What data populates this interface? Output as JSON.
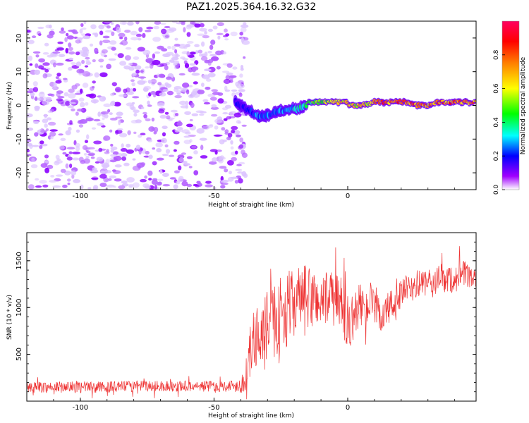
{
  "title": "PAZ1.2025.364.16.32.G32",
  "chart_data": [
    {
      "type": "heatmap",
      "title": "PAZ1.2025.364.16.32.G32",
      "xlabel": "Height of straight line (km)",
      "ylabel": "Frequency (Hz)",
      "xlim": [
        -120,
        48
      ],
      "ylim": [
        -25,
        25
      ],
      "x_ticks": [
        -100,
        -50,
        0
      ],
      "y_ticks": [
        -20,
        -10,
        0,
        10,
        20
      ],
      "colorbar": {
        "label": "Normalized spectral amplitude",
        "range": [
          0.0,
          1.0
        ],
        "ticks": [
          0.0,
          0.2,
          0.4,
          0.6,
          0.8
        ],
        "tick_labels": [
          "0.0",
          "0.2",
          "0.4",
          "0.6",
          "0.8"
        ],
        "colors": [
          "#ffffff",
          "#a000ff",
          "#0000ff",
          "#00ffff",
          "#00ff00",
          "#ffff00",
          "#ff8000",
          "#ff0000",
          "#ff0060"
        ]
      },
      "noise_region": {
        "x_range": [
          -120,
          -40
        ],
        "freq_range": [
          -25,
          25
        ],
        "amplitude_range": [
          0.0,
          0.15
        ]
      },
      "signal_track": {
        "x": [
          -42,
          -38,
          -34,
          -30,
          -26,
          -22,
          -18,
          -14,
          -10,
          -6,
          -2,
          2,
          6,
          10,
          14,
          18,
          22,
          26,
          30,
          34,
          38,
          42,
          46
        ],
        "freq": [
          1,
          -1,
          -3,
          -3,
          -2,
          -1,
          -1,
          1,
          1,
          1,
          1,
          0,
          0,
          1,
          1,
          1,
          1,
          0,
          0,
          1,
          1,
          1,
          1
        ],
        "amplitude": [
          0.2,
          0.2,
          0.3,
          0.3,
          0.3,
          0.3,
          0.4,
          0.5,
          0.6,
          0.6,
          0.7,
          0.7,
          0.7,
          0.8,
          0.9,
          0.85,
          0.9,
          0.85,
          0.8,
          0.85,
          0.85,
          0.85,
          0.8
        ]
      }
    },
    {
      "type": "line",
      "xlabel": "Height of straight line (km)",
      "ylabel": "SNR (10 * v/v)",
      "xlim": [
        -120,
        48
      ],
      "ylim": [
        0,
        1800
      ],
      "x_ticks": [
        -100,
        -50,
        0
      ],
      "y_ticks": [
        500,
        1000,
        1500
      ],
      "series": [
        {
          "name": "SNR",
          "color": "#ee3333",
          "x": [
            -120,
            -110,
            -100,
            -90,
            -80,
            -70,
            -60,
            -50,
            -45,
            -40,
            -38,
            -36,
            -34,
            -32,
            -30,
            -28,
            -26,
            -24,
            -22,
            -20,
            -18,
            -16,
            -14,
            -12,
            -10,
            -8,
            -6,
            -4,
            -2,
            0,
            2,
            4,
            6,
            8,
            10,
            12,
            14,
            16,
            18,
            20,
            22,
            24,
            26,
            28,
            30,
            32,
            34,
            36,
            38,
            40,
            42,
            44,
            46,
            48
          ],
          "values": [
            150,
            150,
            150,
            150,
            160,
            160,
            160,
            160,
            160,
            170,
            250,
            600,
            700,
            750,
            800,
            850,
            900,
            950,
            1000,
            1050,
            1100,
            1100,
            1100,
            1100,
            1050,
            1100,
            1100,
            1050,
            1050,
            750,
            900,
            1000,
            1050,
            1000,
            1000,
            900,
            950,
            1000,
            1050,
            1150,
            1200,
            1200,
            1250,
            1250,
            1250,
            1250,
            1300,
            1300,
            1300,
            1300,
            1350,
            1350,
            1300,
            1300
          ],
          "spread": [
            60,
            60,
            60,
            60,
            60,
            60,
            60,
            60,
            60,
            80,
            200,
            300,
            350,
            350,
            400,
            400,
            400,
            400,
            400,
            350,
            350,
            350,
            350,
            300,
            300,
            300,
            300,
            300,
            300,
            250,
            250,
            250,
            200,
            200,
            200,
            200,
            200,
            200,
            200,
            150,
            150,
            150,
            150,
            150,
            150,
            150,
            150,
            150,
            150,
            150,
            150,
            150,
            100,
            100
          ]
        }
      ]
    }
  ]
}
